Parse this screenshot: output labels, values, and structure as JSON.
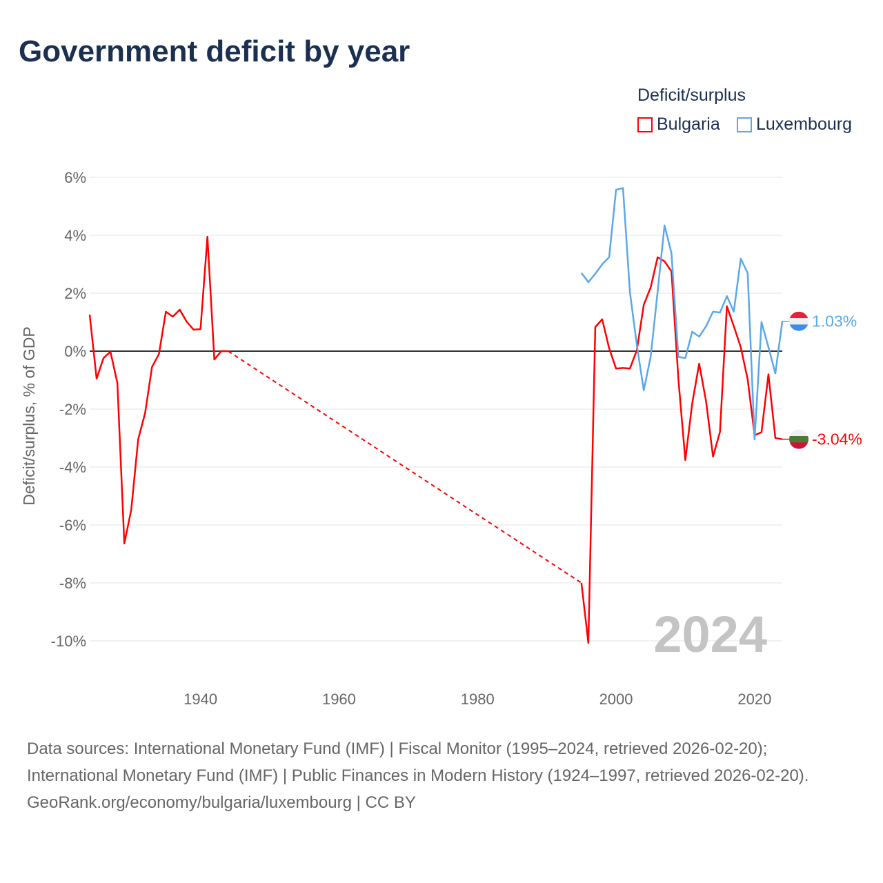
{
  "title": "Government deficit by year",
  "legend": {
    "title": "Deficit/surplus",
    "items": [
      {
        "label": "Bulgaria",
        "color": "#ff0000"
      },
      {
        "label": "Luxembourg",
        "color": "#5aa8ea"
      }
    ]
  },
  "footer": {
    "sources": "Data sources: International Monetary Fund (IMF) | Fiscal Monitor (1995–2024, retrieved 2026-02-20); International Monetary Fund (IMF) | Public Finances in Modern History (1924–1997, retrieved 2026-02-20).",
    "credit": "GeoRank.org/economy/bulgaria/luxembourg | CC BY"
  },
  "chart_data": {
    "type": "line",
    "title": "Government deficit by year",
    "xlabel": "",
    "ylabel": "Deficit/surplus, % of GDP",
    "xlim": [
      1924,
      2024
    ],
    "ylim": [
      -11,
      6.5
    ],
    "xticks": [
      1940,
      1960,
      1980,
      2000,
      2020
    ],
    "yticks": [
      6,
      4,
      2,
      0,
      -2,
      -4,
      -6,
      -8,
      -10
    ],
    "ytick_labels": [
      "6%",
      "4%",
      "2%",
      "0%",
      "-2%",
      "-4%",
      "-6%",
      "-8%",
      "-10%"
    ],
    "year_watermark": "2024",
    "series": [
      {
        "name": "Bulgaria",
        "color": "#ff0000",
        "end_label": "-3.04%",
        "gap": [
          1944,
          1995
        ],
        "points": [
          [
            1924,
            1.26
          ],
          [
            1925,
            -0.95
          ],
          [
            1926,
            -0.24
          ],
          [
            1927,
            -0.02
          ],
          [
            1928,
            -1.1
          ],
          [
            1929,
            -6.64
          ],
          [
            1930,
            -5.48
          ],
          [
            1931,
            -3.05
          ],
          [
            1932,
            -2.14
          ],
          [
            1933,
            -0.55
          ],
          [
            1934,
            -0.1
          ],
          [
            1935,
            1.36
          ],
          [
            1936,
            1.19
          ],
          [
            1937,
            1.43
          ],
          [
            1938,
            1.02
          ],
          [
            1939,
            0.74
          ],
          [
            1940,
            0.76
          ],
          [
            1941,
            3.95
          ],
          [
            1942,
            -0.29
          ],
          [
            1943,
            0.0
          ],
          [
            1944,
            0.0
          ],
          [
            1995,
            -8.0
          ],
          [
            1996,
            -10.07
          ],
          [
            1997,
            0.83
          ],
          [
            1998,
            1.1
          ],
          [
            1999,
            0.1
          ],
          [
            2000,
            -0.6
          ],
          [
            2001,
            -0.58
          ],
          [
            2002,
            -0.6
          ],
          [
            2003,
            0.03
          ],
          [
            2004,
            1.6
          ],
          [
            2005,
            2.2
          ],
          [
            2006,
            3.24
          ],
          [
            2007,
            3.1
          ],
          [
            2008,
            2.75
          ],
          [
            2009,
            -0.97
          ],
          [
            2010,
            -3.76
          ],
          [
            2011,
            -1.8
          ],
          [
            2012,
            -0.43
          ],
          [
            2013,
            -1.74
          ],
          [
            2014,
            -3.64
          ],
          [
            2015,
            -2.79
          ],
          [
            2016,
            1.55
          ],
          [
            2017,
            0.86
          ],
          [
            2018,
            0.14
          ],
          [
            2019,
            -0.97
          ],
          [
            2020,
            -2.9
          ],
          [
            2021,
            -2.8
          ],
          [
            2022,
            -0.8
          ],
          [
            2023,
            -3.0
          ],
          [
            2024,
            -3.04
          ]
        ]
      },
      {
        "name": "Luxembourg",
        "color": "#5aa8ea",
        "end_label": "1.03%",
        "points": [
          [
            1995,
            2.7
          ],
          [
            1996,
            2.38
          ],
          [
            1997,
            2.67
          ],
          [
            1998,
            3.0
          ],
          [
            1999,
            3.24
          ],
          [
            2000,
            5.57
          ],
          [
            2001,
            5.63
          ],
          [
            2002,
            2.04
          ],
          [
            2003,
            0.21
          ],
          [
            2004,
            -1.35
          ],
          [
            2005,
            -0.19
          ],
          [
            2006,
            2.05
          ],
          [
            2007,
            4.34
          ],
          [
            2008,
            3.38
          ],
          [
            2009,
            -0.2
          ],
          [
            2010,
            -0.24
          ],
          [
            2011,
            0.67
          ],
          [
            2012,
            0.5
          ],
          [
            2013,
            0.86
          ],
          [
            2014,
            1.36
          ],
          [
            2015,
            1.33
          ],
          [
            2016,
            1.9
          ],
          [
            2017,
            1.36
          ],
          [
            2018,
            3.19
          ],
          [
            2019,
            2.7
          ],
          [
            2020,
            -3.05
          ],
          [
            2021,
            1.0
          ],
          [
            2022,
            0.14
          ],
          [
            2023,
            -0.77
          ],
          [
            2024,
            1.03
          ]
        ]
      }
    ]
  }
}
